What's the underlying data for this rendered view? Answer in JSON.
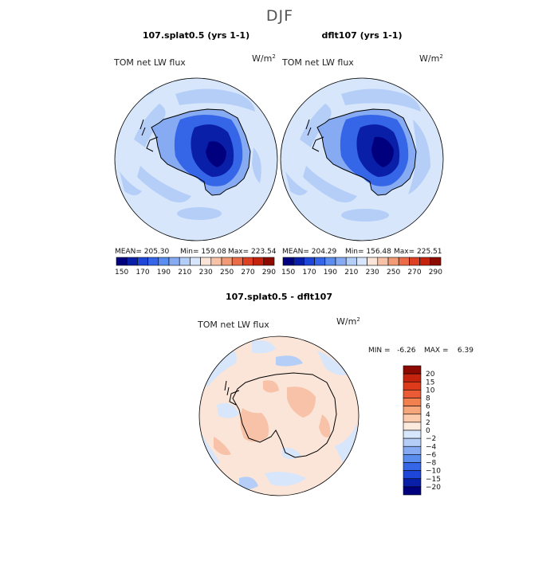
{
  "figure": {
    "season": "DJF"
  },
  "chart_data": [
    {
      "type": "heatmap",
      "projection": "south-polar-stereographic",
      "title": "107.splat0.5 (yrs 1-1)",
      "variable_label": "TOM net LW flux",
      "units_base": "W/m",
      "units_exp": "2",
      "stats": {
        "mean_text": "MEAN= 205.30",
        "min_text": "Min= 159.08",
        "max_text": "Max= 223.54",
        "mean": 205.3,
        "min": 159.08,
        "max": 223.54
      },
      "colorbar": {
        "levels": [
          150,
          160,
          170,
          180,
          190,
          200,
          210,
          220,
          230,
          240,
          250,
          260,
          270,
          280,
          290
        ],
        "tick_labels": [
          "150",
          "170",
          "190",
          "210",
          "230",
          "250",
          "270",
          "290"
        ],
        "colors": [
          "#00007f",
          "#0a1fa8",
          "#1e46d8",
          "#3566e8",
          "#5b8def",
          "#86abf2",
          "#b4cef7",
          "#d7e6fb",
          "#fbe5d8",
          "#f7c2a8",
          "#f29b77",
          "#ea6d47",
          "#dd4124",
          "#c4240e",
          "#8c0a00"
        ]
      }
    },
    {
      "type": "heatmap",
      "projection": "south-polar-stereographic",
      "title": "dflt107 (yrs 1-1)",
      "variable_label": "TOM net LW flux",
      "units_base": "W/m",
      "units_exp": "2",
      "stats": {
        "mean_text": "MEAN= 204.29",
        "min_text": "Min= 156.48",
        "max_text": "Max= 225.51",
        "mean": 204.29,
        "min": 156.48,
        "max": 225.51
      },
      "colorbar": {
        "levels": [
          150,
          160,
          170,
          180,
          190,
          200,
          210,
          220,
          230,
          240,
          250,
          260,
          270,
          280,
          290
        ],
        "tick_labels": [
          "150",
          "170",
          "190",
          "210",
          "230",
          "250",
          "270",
          "290"
        ],
        "colors": [
          "#00007f",
          "#0a1fa8",
          "#1e46d8",
          "#3566e8",
          "#5b8def",
          "#86abf2",
          "#b4cef7",
          "#d7e6fb",
          "#fbe5d8",
          "#f7c2a8",
          "#f29b77",
          "#ea6d47",
          "#dd4124",
          "#c4240e",
          "#8c0a00"
        ]
      }
    },
    {
      "type": "heatmap",
      "projection": "south-polar-stereographic",
      "title": "107.splat0.5 - dflt107",
      "variable_label": "TOM net LW flux",
      "units_base": "W/m",
      "units_exp": "2",
      "stats": {
        "min_text": "MIN =   -6.26",
        "max_text": "MAX =    6.39",
        "min": -6.26,
        "max": 6.39
      },
      "colorbar": {
        "tick_labels": [
          "20",
          "15",
          "10",
          "8",
          "6",
          "4",
          "2",
          "0",
          "−2",
          "−4",
          "−6",
          "−8",
          "−10",
          "−15",
          "−20"
        ],
        "colors": [
          "#8c0a00",
          "#c4240e",
          "#dd3a1c",
          "#ea5a34",
          "#f2804f",
          "#f7a57a",
          "#fbc9ab",
          "#fdeadf",
          "#d7e6fb",
          "#b4cef7",
          "#86abf2",
          "#5b8def",
          "#3566e8",
          "#1e46d8",
          "#0a1fa8",
          "#00007f"
        ]
      }
    }
  ],
  "colors": {
    "ocean_base": "#d7e6fb",
    "ice_light": "#86abf2",
    "ice_mid": "#3566e8",
    "ice_deep": "#0a1fa8",
    "ice_core": "#00007f",
    "warm_patch": "#fbe5d8",
    "diff_base": "#fbe5d8",
    "diff_warm": "#f7c2a8",
    "diff_cool": "#d7e6fb",
    "diff_cool2": "#b4cef7"
  }
}
